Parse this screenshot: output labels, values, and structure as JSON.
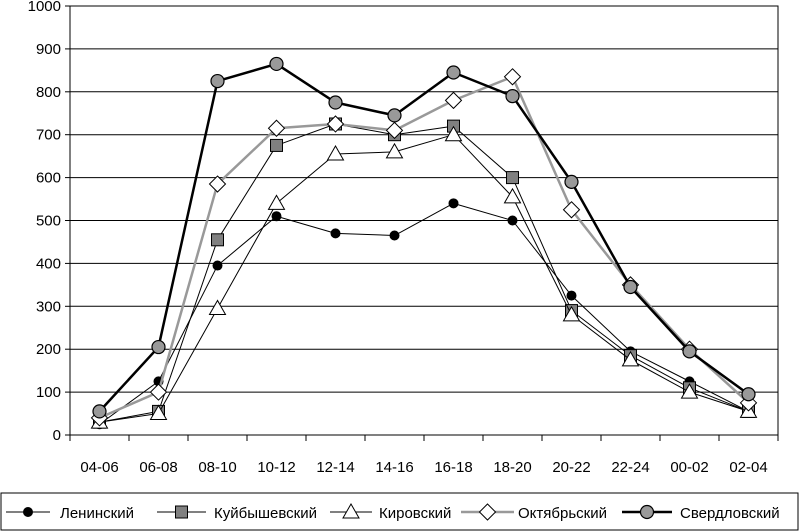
{
  "chart_data": {
    "type": "line",
    "title": "",
    "xlabel": "",
    "ylabel": "",
    "categories": [
      "04-06",
      "06-08",
      "08-10",
      "10-12",
      "12-14",
      "14-16",
      "16-18",
      "18-20",
      "20-22",
      "22-24",
      "00-02",
      "02-04"
    ],
    "ylim": [
      0,
      1000
    ],
    "yticks": [
      0,
      100,
      200,
      300,
      400,
      500,
      600,
      700,
      800,
      900,
      1000
    ],
    "grid": "horizontal",
    "legend_position": "bottom",
    "series": [
      {
        "name": "Ленинский",
        "marker": "circle-small",
        "color": "#000000",
        "line_width": 1,
        "values": [
          25,
          125,
          395,
          510,
          470,
          465,
          540,
          500,
          325,
          195,
          125,
          55
        ]
      },
      {
        "name": "Куйбышевский",
        "marker": "square",
        "color": "#000000",
        "marker_fill": "#808080",
        "line_width": 1,
        "values": [
          30,
          55,
          455,
          675,
          725,
          700,
          720,
          600,
          290,
          185,
          110,
          55
        ]
      },
      {
        "name": "Кировский",
        "marker": "triangle",
        "color": "#000000",
        "marker_fill": "#ffffff",
        "line_width": 1,
        "values": [
          30,
          50,
          295,
          540,
          655,
          660,
          700,
          555,
          280,
          175,
          100,
          55
        ]
      },
      {
        "name": "Октябрьский",
        "marker": "diamond",
        "color": "#999999",
        "marker_fill": "#ffffff",
        "line_width": 2.5,
        "values": [
          40,
          100,
          585,
          715,
          725,
          710,
          780,
          835,
          525,
          350,
          200,
          75
        ]
      },
      {
        "name": "Свердловский",
        "marker": "circle",
        "color": "#000000",
        "marker_fill": "#999999",
        "line_width": 2.5,
        "values": [
          55,
          205,
          825,
          865,
          775,
          745,
          845,
          790,
          590,
          345,
          195,
          95
        ]
      }
    ]
  }
}
